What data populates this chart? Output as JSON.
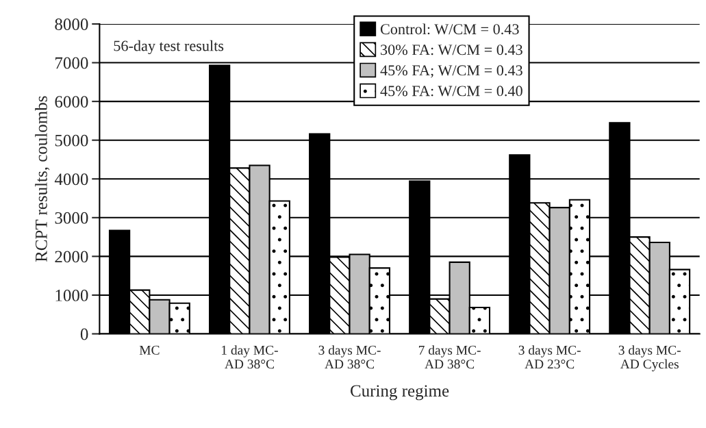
{
  "chart_data": {
    "type": "bar",
    "xlabel": "Curing regime",
    "ylabel": "RCPT results, coulombs",
    "categories": [
      "MC",
      "1 day MC-\nAD 38°C",
      "3 days MC-\nAD 38°C",
      "7 days MC-\nAD 38°C",
      "3 days MC-\nAD 23°C",
      "3 days MC-\nAD Cycles"
    ],
    "series": [
      {
        "name": "Control: W/CM = 0.43",
        "color": "#000000",
        "values": [
          2670,
          6930,
          5160,
          3940,
          4620,
          5450
        ]
      },
      {
        "name": "30% FA: W/CM = 0.43",
        "color": "#ffffff",
        "values": [
          1130,
          4280,
          1980,
          900,
          3380,
          2500
        ]
      },
      {
        "name": "45% FA; W/CM = 0.43",
        "color": "#c0c0c0",
        "values": [
          880,
          4350,
          2050,
          1850,
          3260,
          2360
        ]
      },
      {
        "name": "45% FA: W/CM = 0.40",
        "color": "#ffffff",
        "values": [
          790,
          3430,
          1700,
          680,
          3460,
          1660
        ]
      }
    ],
    "ylim": [
      0,
      8000
    ],
    "yticks": [
      0,
      1000,
      2000,
      3000,
      4000,
      5000,
      6000,
      7000,
      8000
    ],
    "grid": "y",
    "legend": "top",
    "annotations": [
      "56-day test results"
    ]
  }
}
